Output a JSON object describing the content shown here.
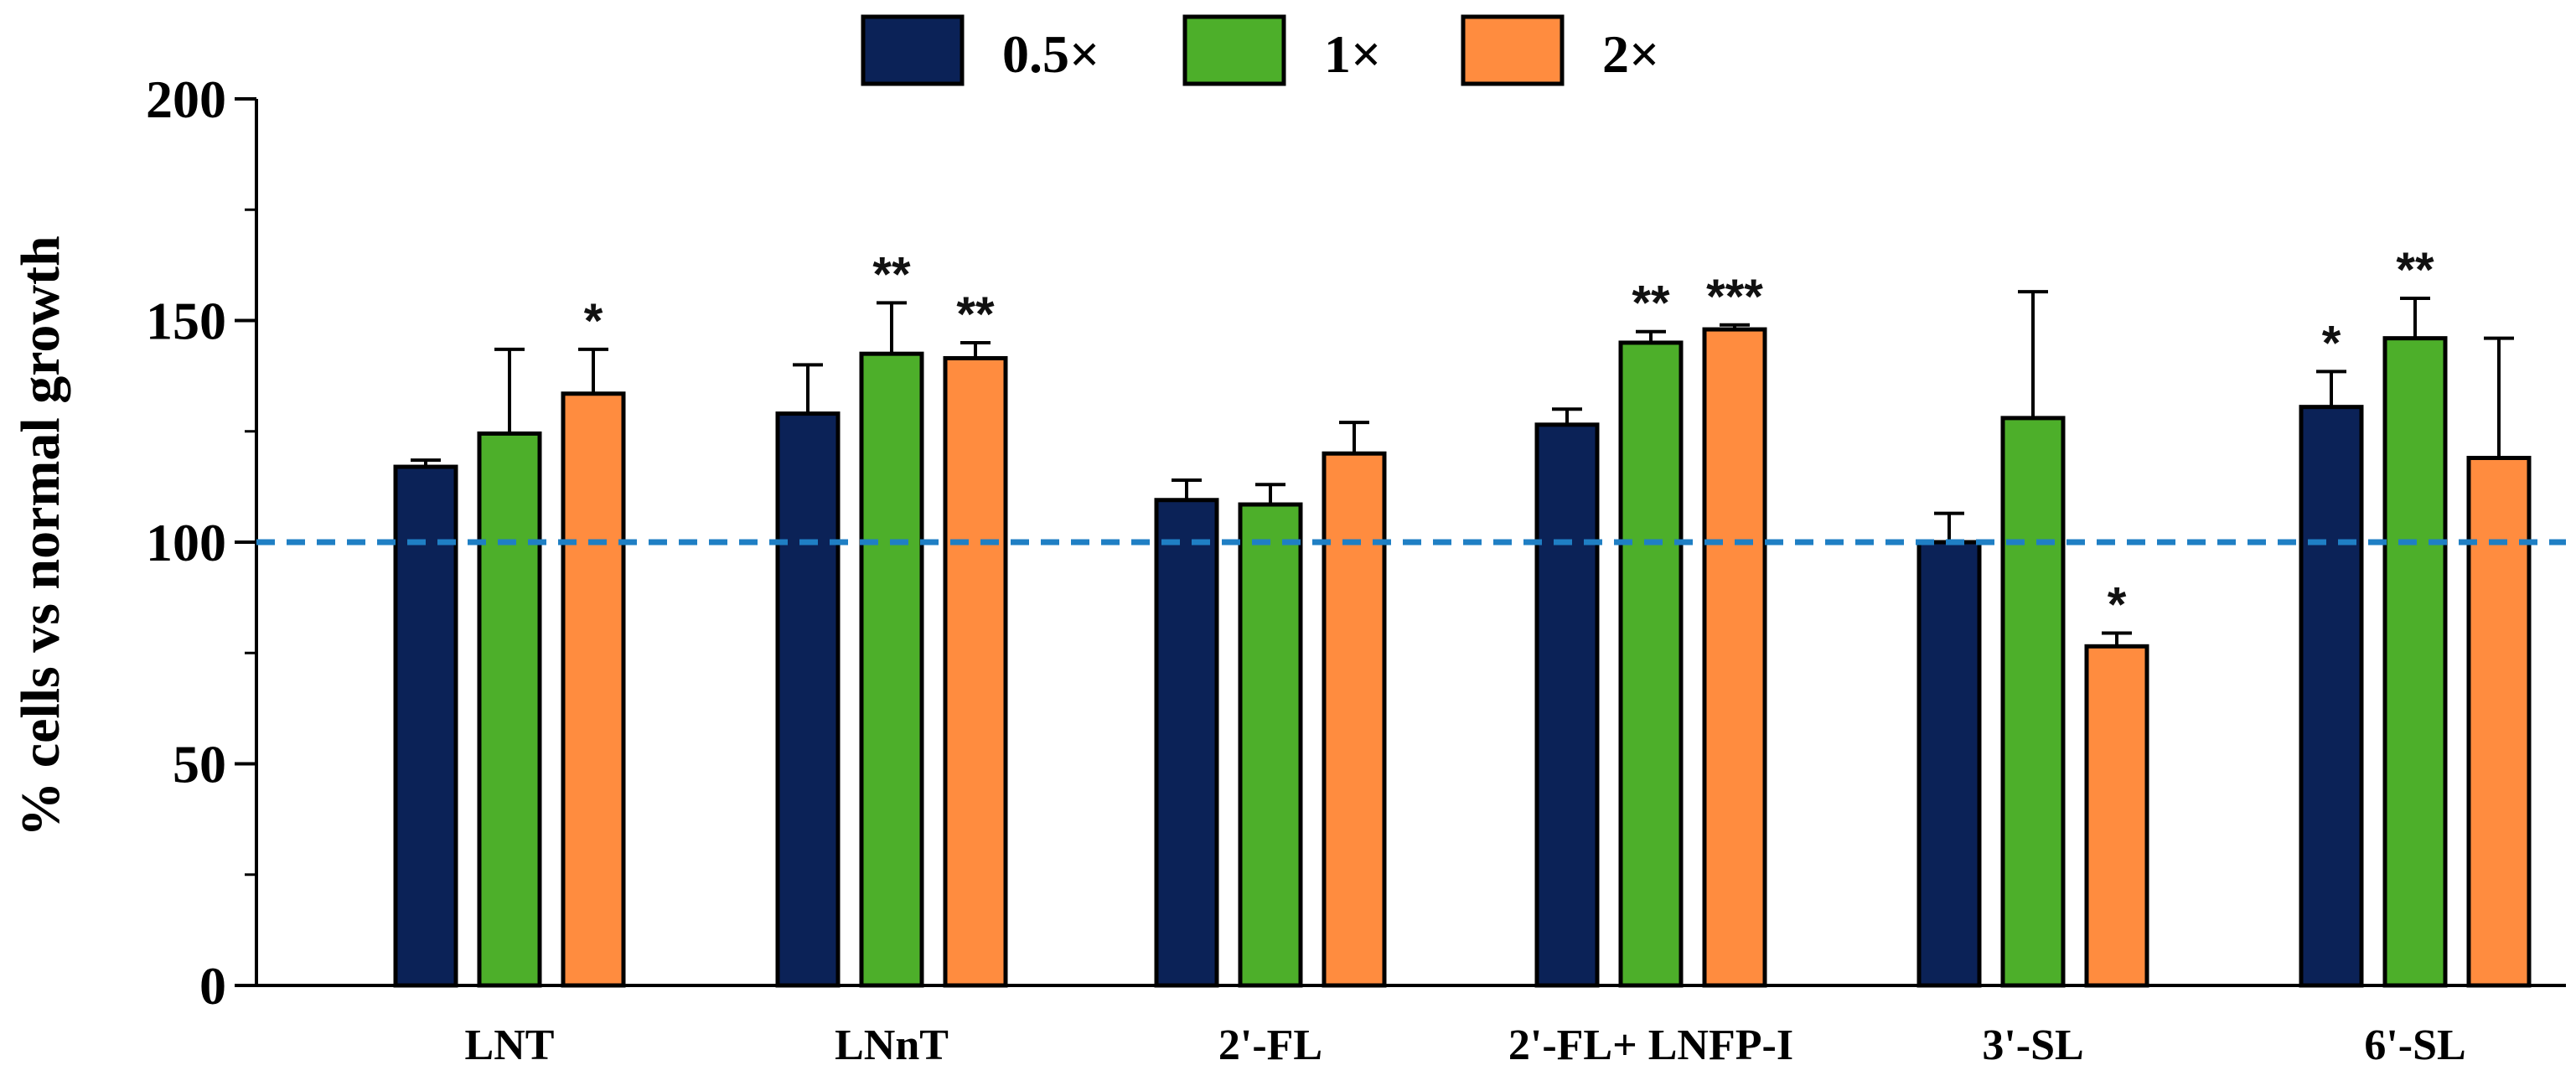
{
  "chart_data": {
    "type": "bar",
    "title": "",
    "xlabel": "",
    "ylabel": "% cells vs normal growth",
    "ylim": [
      0,
      200
    ],
    "yticks": [
      0,
      50,
      100,
      150,
      200
    ],
    "grid": false,
    "legend_position": "top-center",
    "reference_line": {
      "value": 100,
      "style": "dashed",
      "color": "#1f7fc4"
    },
    "categories": [
      "LNT",
      "LNnT",
      "2'-FL",
      "2'-FL+ LNFP-I",
      "3'-SL",
      "6'-SL"
    ],
    "series": [
      {
        "name": "0.5×",
        "color": "#0b2257",
        "values": [
          117,
          129,
          109.5,
          126.5,
          100,
          130.5
        ],
        "errors": [
          1.5,
          11,
          4.5,
          3.5,
          6.5,
          8
        ],
        "significance": [
          "",
          "",
          "",
          "",
          "",
          "*"
        ]
      },
      {
        "name": "1×",
        "color": "#4daf2a",
        "values": [
          124.5,
          142.5,
          108.5,
          145,
          128,
          146
        ],
        "errors": [
          19,
          11.5,
          4.5,
          2.5,
          28.5,
          9
        ],
        "significance": [
          "",
          "**",
          "",
          "**",
          "",
          "**"
        ]
      },
      {
        "name": "2×",
        "color": "#ff8c3f",
        "values": [
          133.5,
          141.5,
          120,
          148,
          76.5,
          119
        ],
        "errors": [
          10,
          3.5,
          7,
          1,
          3,
          27
        ],
        "significance": [
          "*",
          "**",
          "",
          "***",
          "*",
          ""
        ]
      }
    ]
  }
}
